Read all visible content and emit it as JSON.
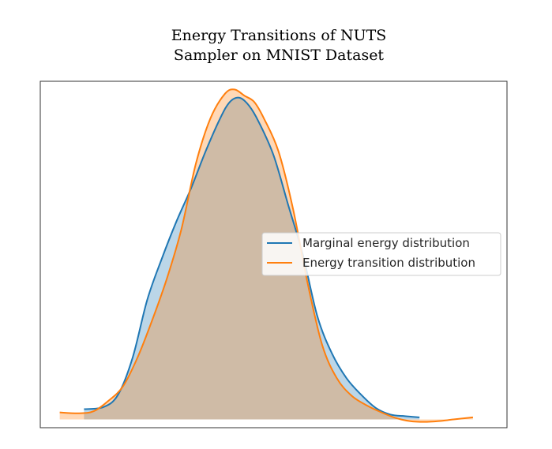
{
  "chart_data": {
    "type": "area",
    "title_lines": [
      "Energy Transitions of NUTS",
      "Sampler on MNIST Dataset"
    ],
    "xlabel": "",
    "ylabel": "",
    "show_ticks": false,
    "grid": false,
    "legend_position": "center-right",
    "xlim": [
      -4.1,
      5.5
    ],
    "ylim": [
      -0.02,
      0.82
    ],
    "series": [
      {
        "name": "Marginal energy distribution",
        "color": "#1f77b4",
        "fill_color": "#1f77b4",
        "fill_alpha": 0.3,
        "x": [
          -3.2,
          -2.8,
          -2.5,
          -2.2,
          -1.9,
          -1.6,
          -1.3,
          -1.0,
          -0.7,
          -0.4,
          -0.2,
          0.0,
          0.2,
          0.4,
          0.7,
          1.0,
          1.3,
          1.6,
          1.9,
          2.2,
          2.5,
          2.8,
          3.1,
          3.4,
          3.7
        ],
        "y": [
          0.025,
          0.03,
          0.06,
          0.15,
          0.29,
          0.39,
          0.48,
          0.56,
          0.65,
          0.73,
          0.77,
          0.78,
          0.76,
          0.72,
          0.64,
          0.52,
          0.4,
          0.25,
          0.16,
          0.1,
          0.06,
          0.028,
          0.012,
          0.008,
          0.005
        ]
      },
      {
        "name": "Energy transition distribution",
        "color": "#ff7f0e",
        "fill_color": "#ff7f0e",
        "fill_alpha": 0.3,
        "x": [
          -3.7,
          -3.3,
          -3.0,
          -2.7,
          -2.4,
          -2.1,
          -1.8,
          -1.5,
          -1.2,
          -0.9,
          -0.6,
          -0.3,
          -0.1,
          0.1,
          0.3,
          0.5,
          0.8,
          1.1,
          1.4,
          1.7,
          2.0,
          2.3,
          2.6,
          2.9,
          3.2,
          3.5,
          3.8,
          4.1,
          4.4,
          4.8
        ],
        "y": [
          0.017,
          0.015,
          0.02,
          0.045,
          0.08,
          0.15,
          0.24,
          0.34,
          0.46,
          0.62,
          0.73,
          0.79,
          0.8,
          0.785,
          0.77,
          0.73,
          0.65,
          0.51,
          0.33,
          0.18,
          0.1,
          0.058,
          0.035,
          0.018,
          0.004,
          -0.004,
          -0.006,
          -0.004,
          0.0,
          0.005
        ]
      }
    ]
  }
}
